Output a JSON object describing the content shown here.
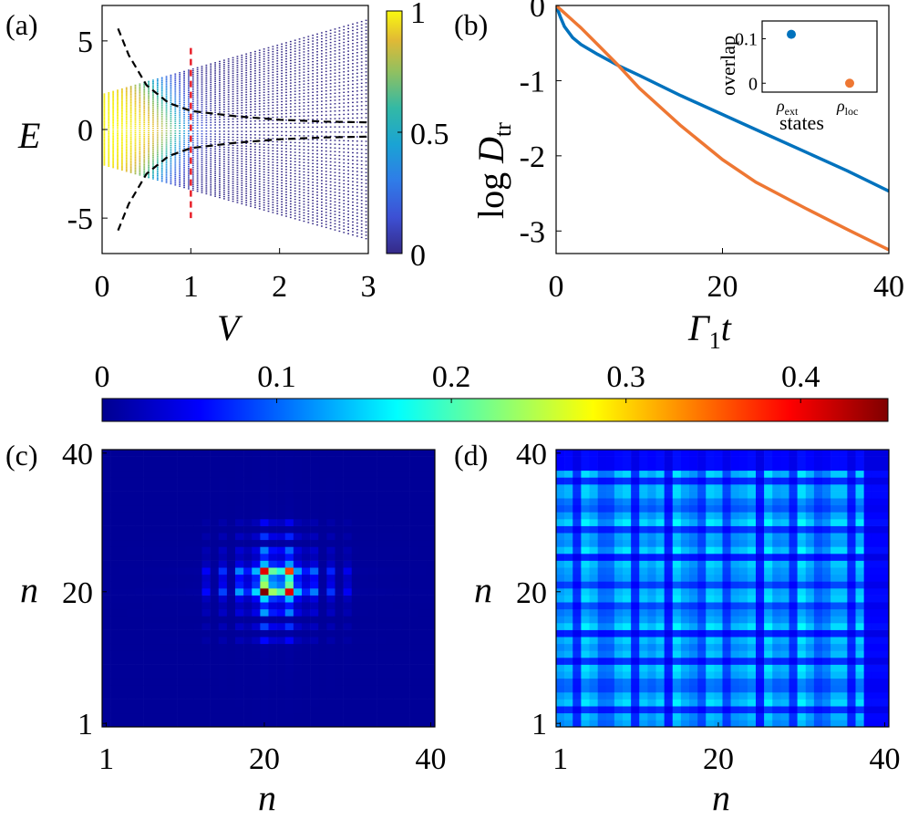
{
  "panel_labels": {
    "a": "(a)",
    "b": "(b)",
    "c": "(c)",
    "d": "(d)"
  },
  "colors": {
    "ext": "#0072BD",
    "loc": "#EE7733",
    "dashed": "#000000",
    "red_dashed": "#E8202A"
  },
  "chart_data": [
    {
      "id": "a",
      "type": "scatter",
      "xlabel": "V",
      "ylabel": "E",
      "xlim": [
        0,
        3
      ],
      "ylim": [
        -7,
        7
      ],
      "xticks": [
        "0",
        "1",
        "2",
        "3"
      ],
      "yticks": [
        "5",
        "0",
        "-5"
      ],
      "colorbar": {
        "ticks": [
          "1",
          "0.5",
          "0"
        ],
        "range": [
          0,
          1
        ],
        "colormap": "parula"
      },
      "vertical_marker": {
        "x": 1,
        "ylim": [
          -5,
          4.6
        ]
      },
      "band_envelope": "E_max = 2 + V*1.43 (approx.)",
      "dashed_curves": [
        {
          "name": "",
          "x": [
            0.18,
            0.3,
            0.5,
            0.75,
            1.0,
            1.5,
            2.0,
            2.5,
            3.0
          ],
          "y": [
            5.7,
            4.2,
            2.5,
            1.5,
            1.05,
            0.75,
            0.55,
            0.45,
            0.4
          ]
        },
        {
          "name": "",
          "x": [
            0.18,
            0.3,
            0.5,
            0.75,
            1.0,
            1.5,
            2.0,
            2.5,
            3.0
          ],
          "y": [
            -5.7,
            -4.2,
            -2.5,
            -1.5,
            -1.05,
            -0.75,
            -0.55,
            -0.45,
            -0.4
          ]
        }
      ]
    },
    {
      "id": "b",
      "type": "line",
      "xlabel": "Γ₁t",
      "ylabel": "log D_tr",
      "xlim": [
        0,
        40
      ],
      "ylim": [
        -3.3,
        0
      ],
      "xticks": [
        "0",
        "20",
        "40"
      ],
      "yticks": [
        "0",
        "-1",
        "-2",
        "-3"
      ],
      "series": [
        {
          "name": "",
          "color": "#0072BD",
          "x": [
            0,
            0.5,
            1,
            2,
            3,
            5,
            7.5,
            10,
            15,
            20,
            25,
            30,
            35,
            40
          ],
          "y": [
            0,
            -0.15,
            -0.28,
            -0.43,
            -0.52,
            -0.65,
            -0.8,
            -0.93,
            -1.2,
            -1.45,
            -1.7,
            -1.95,
            -2.2,
            -2.47
          ]
        },
        {
          "name": "",
          "color": "#EE7733",
          "x": [
            0,
            1,
            2,
            3,
            5,
            7.5,
            10,
            15,
            20,
            24,
            30,
            35,
            40
          ],
          "y": [
            0,
            -0.1,
            -0.2,
            -0.3,
            -0.52,
            -0.8,
            -1.1,
            -1.6,
            -2.05,
            -2.35,
            -2.7,
            -2.98,
            -3.25
          ]
        }
      ],
      "inset": {
        "type": "scatter",
        "xlabel": "states",
        "ylabel": "overlap",
        "categories": [
          "ρ_ext",
          "ρ_loc"
        ],
        "values": [
          0.11,
          0.0
        ],
        "yticks": [
          "0.1",
          "0"
        ],
        "ylim": [
          -0.02,
          0.14
        ]
      }
    },
    {
      "id": "colorbar",
      "type": "heatmap",
      "ticks": [
        "0",
        "0.1",
        "0.2",
        "0.3",
        "0.4"
      ],
      "range": [
        0,
        0.45
      ],
      "colormap": "jet"
    },
    {
      "id": "c",
      "type": "heatmap",
      "xlabel": "n",
      "ylabel": "n",
      "xticks": [
        "1",
        "20",
        "40"
      ],
      "yticks": [
        "40",
        "20",
        "1"
      ],
      "grid_size": 40,
      "description": "localized: peak around n=20-23"
    },
    {
      "id": "d",
      "type": "heatmap",
      "xlabel": "n",
      "ylabel": "n",
      "xticks": [
        "1",
        "20",
        "40"
      ],
      "yticks": [
        "40",
        "20",
        "1"
      ],
      "grid_size": 40,
      "description": "extended: weak pattern over all n"
    }
  ]
}
